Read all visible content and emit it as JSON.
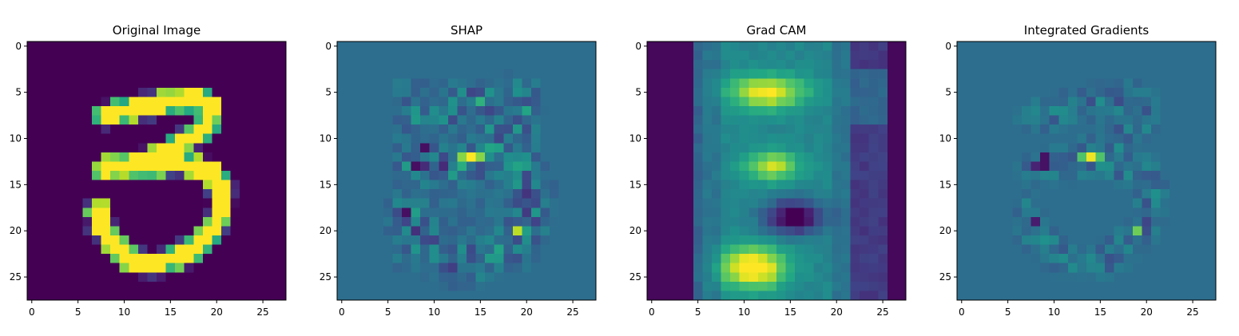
{
  "chart_data": [
    {
      "type": "heatmap",
      "title": "Original Image",
      "pattern": "digit",
      "colormap": "viridis",
      "grid": false,
      "xlim": [
        -0.5,
        27.5
      ],
      "ylim": [
        27.5,
        -0.5
      ],
      "xticks": [
        "0",
        "5",
        "10",
        "15",
        "20",
        "25"
      ],
      "yticks": [
        "0",
        "5",
        "10",
        "15",
        "20",
        "25"
      ]
    },
    {
      "type": "heatmap",
      "title": "SHAP",
      "pattern": "shap",
      "colormap": "viridis",
      "grid": false,
      "xlim": [
        -0.5,
        27.5
      ],
      "ylim": [
        27.5,
        -0.5
      ],
      "xticks": [
        "0",
        "5",
        "10",
        "15",
        "20",
        "25"
      ],
      "yticks": [
        "0",
        "5",
        "10",
        "15",
        "20",
        "25"
      ]
    },
    {
      "type": "heatmap",
      "title": "Grad CAM",
      "pattern": "gradcam",
      "colormap": "viridis",
      "grid": false,
      "xlim": [
        -0.5,
        27.5
      ],
      "ylim": [
        27.5,
        -0.5
      ],
      "xticks": [
        "0",
        "5",
        "10",
        "15",
        "20",
        "25"
      ],
      "yticks": [
        "0",
        "5",
        "10",
        "15",
        "20",
        "25"
      ]
    },
    {
      "type": "heatmap",
      "title": "Integrated Gradients",
      "pattern": "ig",
      "colormap": "viridis",
      "grid": false,
      "xlim": [
        -0.5,
        27.5
      ],
      "ylim": [
        27.5,
        -0.5
      ],
      "xticks": [
        "0",
        "5",
        "10",
        "15",
        "20",
        "25"
      ],
      "yticks": [
        "0",
        "5",
        "10",
        "15",
        "20",
        "25"
      ]
    }
  ]
}
